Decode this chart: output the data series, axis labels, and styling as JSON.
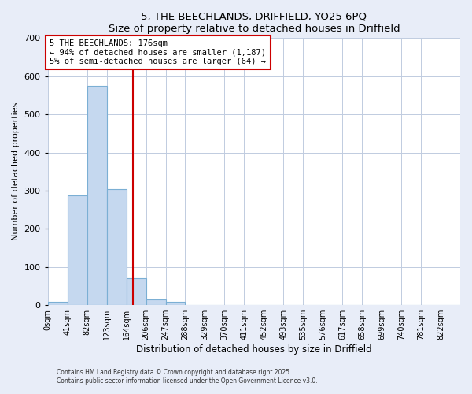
{
  "title": "5, THE BEECHLANDS, DRIFFIELD, YO25 6PQ",
  "subtitle": "Size of property relative to detached houses in Driffield",
  "xlabel": "Distribution of detached houses by size in Driffield",
  "ylabel": "Number of detached properties",
  "bar_labels": [
    "0sqm",
    "41sqm",
    "82sqm",
    "123sqm",
    "164sqm",
    "206sqm",
    "247sqm",
    "288sqm",
    "329sqm",
    "370sqm",
    "411sqm",
    "452sqm",
    "493sqm",
    "535sqm",
    "576sqm",
    "617sqm",
    "658sqm",
    "699sqm",
    "740sqm",
    "781sqm",
    "822sqm"
  ],
  "bar_values": [
    8,
    288,
    575,
    305,
    70,
    15,
    8,
    0,
    0,
    0,
    0,
    0,
    0,
    0,
    0,
    0,
    0,
    0,
    0,
    0,
    0
  ],
  "bar_color": "#c5d8ef",
  "bar_edge_color": "#7bafd4",
  "vline_x": 4.35,
  "vline_color": "#cc0000",
  "ylim": [
    0,
    700
  ],
  "yticks": [
    0,
    100,
    200,
    300,
    400,
    500,
    600,
    700
  ],
  "annotation_text": "5 THE BEECHLANDS: 176sqm\n← 94% of detached houses are smaller (1,187)\n5% of semi-detached houses are larger (64) →",
  "annotation_box_color": "#ffffff",
  "annotation_box_edgecolor": "#cc0000",
  "footer1": "Contains HM Land Registry data © Crown copyright and database right 2025.",
  "footer2": "Contains public sector information licensed under the Open Government Licence v3.0.",
  "bg_color": "#e8edf8",
  "plot_bg_color": "#ffffff",
  "grid_color": "#c0cce0"
}
